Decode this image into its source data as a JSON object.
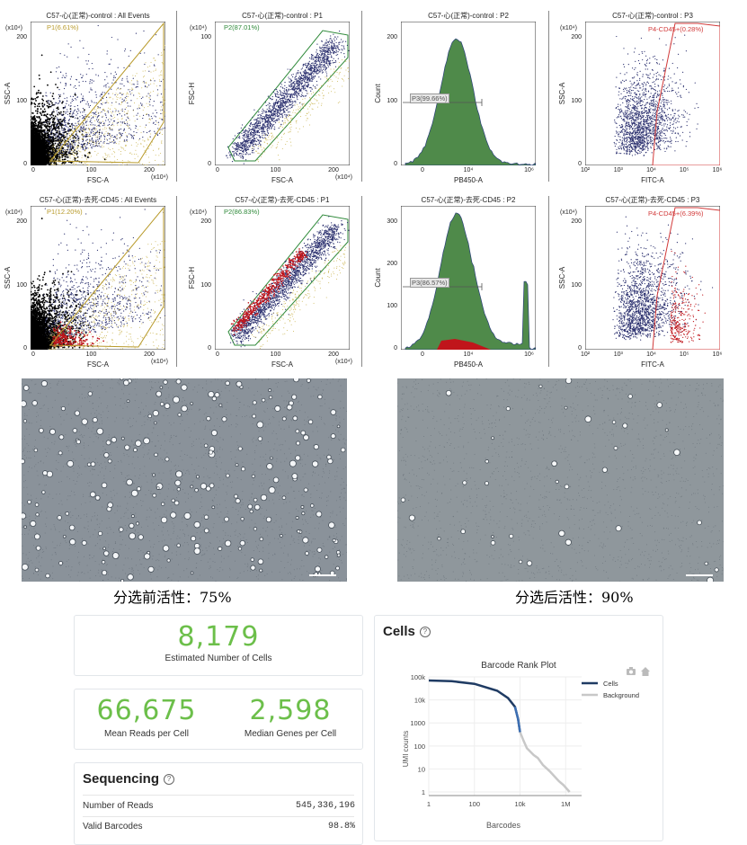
{
  "flow_panels": [
    {
      "title": "C57-心(正常)-control : All Events",
      "gate": "P1(6.61%)",
      "x_label": "FSC-A",
      "y_label": "SSC-A",
      "x_ticks": [
        "0",
        "100",
        "200"
      ],
      "y_ticks": [
        "0",
        "100",
        "200"
      ],
      "x_exp": "(x10⁴)",
      "y_exp": "(x10⁴)",
      "gate_color": "#b89a2a"
    },
    {
      "title": "C57-心(正常)-control : P1",
      "gate": "P2(87.01%)",
      "x_label": "FSC-A",
      "y_label": "FSC-H",
      "x_ticks": [
        "0",
        "100",
        "200"
      ],
      "y_ticks": [
        "0",
        "100"
      ],
      "x_exp": "(x10⁴)",
      "y_exp": "(x10⁴)",
      "gate_color": "#2f8a3a"
    },
    {
      "title": "C57-心(正常)-control : P2",
      "gate": "P3(99.66%)",
      "x_label": "PB450-A",
      "y_label": "Count",
      "x_ticks": [
        "0",
        "10⁴",
        "10⁶"
      ],
      "y_ticks": [
        "0",
        "100",
        "200"
      ],
      "x_exp": "",
      "y_exp": "",
      "gate_color": "#555555"
    },
    {
      "title": "C57-心(正常)-control : P3",
      "gate": "P4-CD45+(0.28%)",
      "x_label": "FITC-A",
      "y_label": "SSC-A",
      "x_ticks": [
        "10²",
        "10³",
        "10⁴",
        "10⁵",
        "10⁶"
      ],
      "y_ticks": [
        "0",
        "100",
        "200"
      ],
      "x_exp": "",
      "y_exp": "(x10⁴)",
      "gate_color": "#d23a3a"
    },
    {
      "title": "C57-心(正常)-去死-CD45 : All Events",
      "gate": "P1(12.20%)",
      "x_label": "FSC-A",
      "y_label": "SSC-A",
      "x_ticks": [
        "0",
        "100",
        "200"
      ],
      "y_ticks": [
        "0",
        "100",
        "200"
      ],
      "x_exp": "(x10⁴)",
      "y_exp": "(x10⁴)",
      "gate_color": "#b89a2a"
    },
    {
      "title": "C57-心(正常)-去死-CD45 : P1",
      "gate": "P2(86.83%)",
      "x_label": "FSC-A",
      "y_label": "FSC-H",
      "x_ticks": [
        "0",
        "100",
        "200"
      ],
      "y_ticks": [
        "0",
        "100",
        "200"
      ],
      "x_exp": "(x10⁴)",
      "y_exp": "(x10⁴)",
      "gate_color": "#2f8a3a"
    },
    {
      "title": "C57-心(正常)-去死-CD45 : P2",
      "gate": "P3(86.57%)",
      "x_label": "PB450-A",
      "y_label": "Count",
      "x_ticks": [
        "0",
        "10⁴",
        "10⁶"
      ],
      "y_ticks": [
        "0",
        "100",
        "200",
        "300"
      ],
      "x_exp": "",
      "y_exp": "",
      "gate_color": "#555555"
    },
    {
      "title": "C57-心(正常)-去死-CD45 : P3",
      "gate": "P4-CD45+(6.39%)",
      "x_label": "FITC-A",
      "y_label": "SSC-A",
      "x_ticks": [
        "10²",
        "10³",
        "10⁴",
        "10⁵",
        "10⁶"
      ],
      "y_ticks": [
        "0",
        "100",
        "200"
      ],
      "x_exp": "",
      "y_exp": "(x10⁴)",
      "gate_color": "#d23a3a"
    }
  ],
  "captions": {
    "before": "分选前活性：75%",
    "after": "分选后活性：90%"
  },
  "summary": {
    "cells_estimated": "8,179",
    "cells_estimated_label": "Estimated Number of Cells",
    "mean_reads": "66,675",
    "mean_reads_label": "Mean Reads per Cell",
    "median_genes": "2,598",
    "median_genes_label": "Median Genes per Cell",
    "accent_color": "#6cbf4a"
  },
  "sequencing": {
    "header": "Sequencing",
    "rows": [
      {
        "label": "Number of Reads",
        "value": "545,336,196"
      },
      {
        "label": "Valid Barcodes",
        "value": "98.8%"
      }
    ]
  },
  "cells_panel": {
    "header": "Cells",
    "chart_title": "Barcode Rank Plot",
    "legend_cells": "Cells",
    "legend_background": "Background",
    "xlabel": "Barcodes",
    "ylabel": "UMI counts",
    "x_ticks": [
      "1",
      "100",
      "10k",
      "1M"
    ],
    "y_ticks": [
      "100k",
      "10k",
      "1000",
      "100",
      "10",
      "1"
    ],
    "cells_color": "#1f3b63",
    "background_color": "#c8c8c8"
  },
  "chart_data": {
    "type": "line",
    "title": "Barcode Rank Plot",
    "xlabel": "Barcodes",
    "ylabel": "UMI counts",
    "x_scale": "log",
    "y_scale": "log",
    "xlim": [
      1,
      5000000
    ],
    "ylim": [
      0.7,
      100000
    ],
    "series": [
      {
        "name": "Cells",
        "points": [
          [
            1,
            70000
          ],
          [
            10,
            65000
          ],
          [
            100,
            50000
          ],
          [
            1000,
            25000
          ],
          [
            3000,
            12000
          ],
          [
            6000,
            5000
          ],
          [
            8179,
            1500
          ],
          [
            10000,
            400
          ]
        ]
      },
      {
        "name": "Background",
        "points": [
          [
            10000,
            400
          ],
          [
            15000,
            150
          ],
          [
            20000,
            80
          ],
          [
            40000,
            40
          ],
          [
            60000,
            30
          ],
          [
            100000,
            15
          ],
          [
            200000,
            8
          ],
          [
            500000,
            3
          ],
          [
            800000,
            2
          ],
          [
            1500000,
            1
          ]
        ]
      }
    ]
  }
}
